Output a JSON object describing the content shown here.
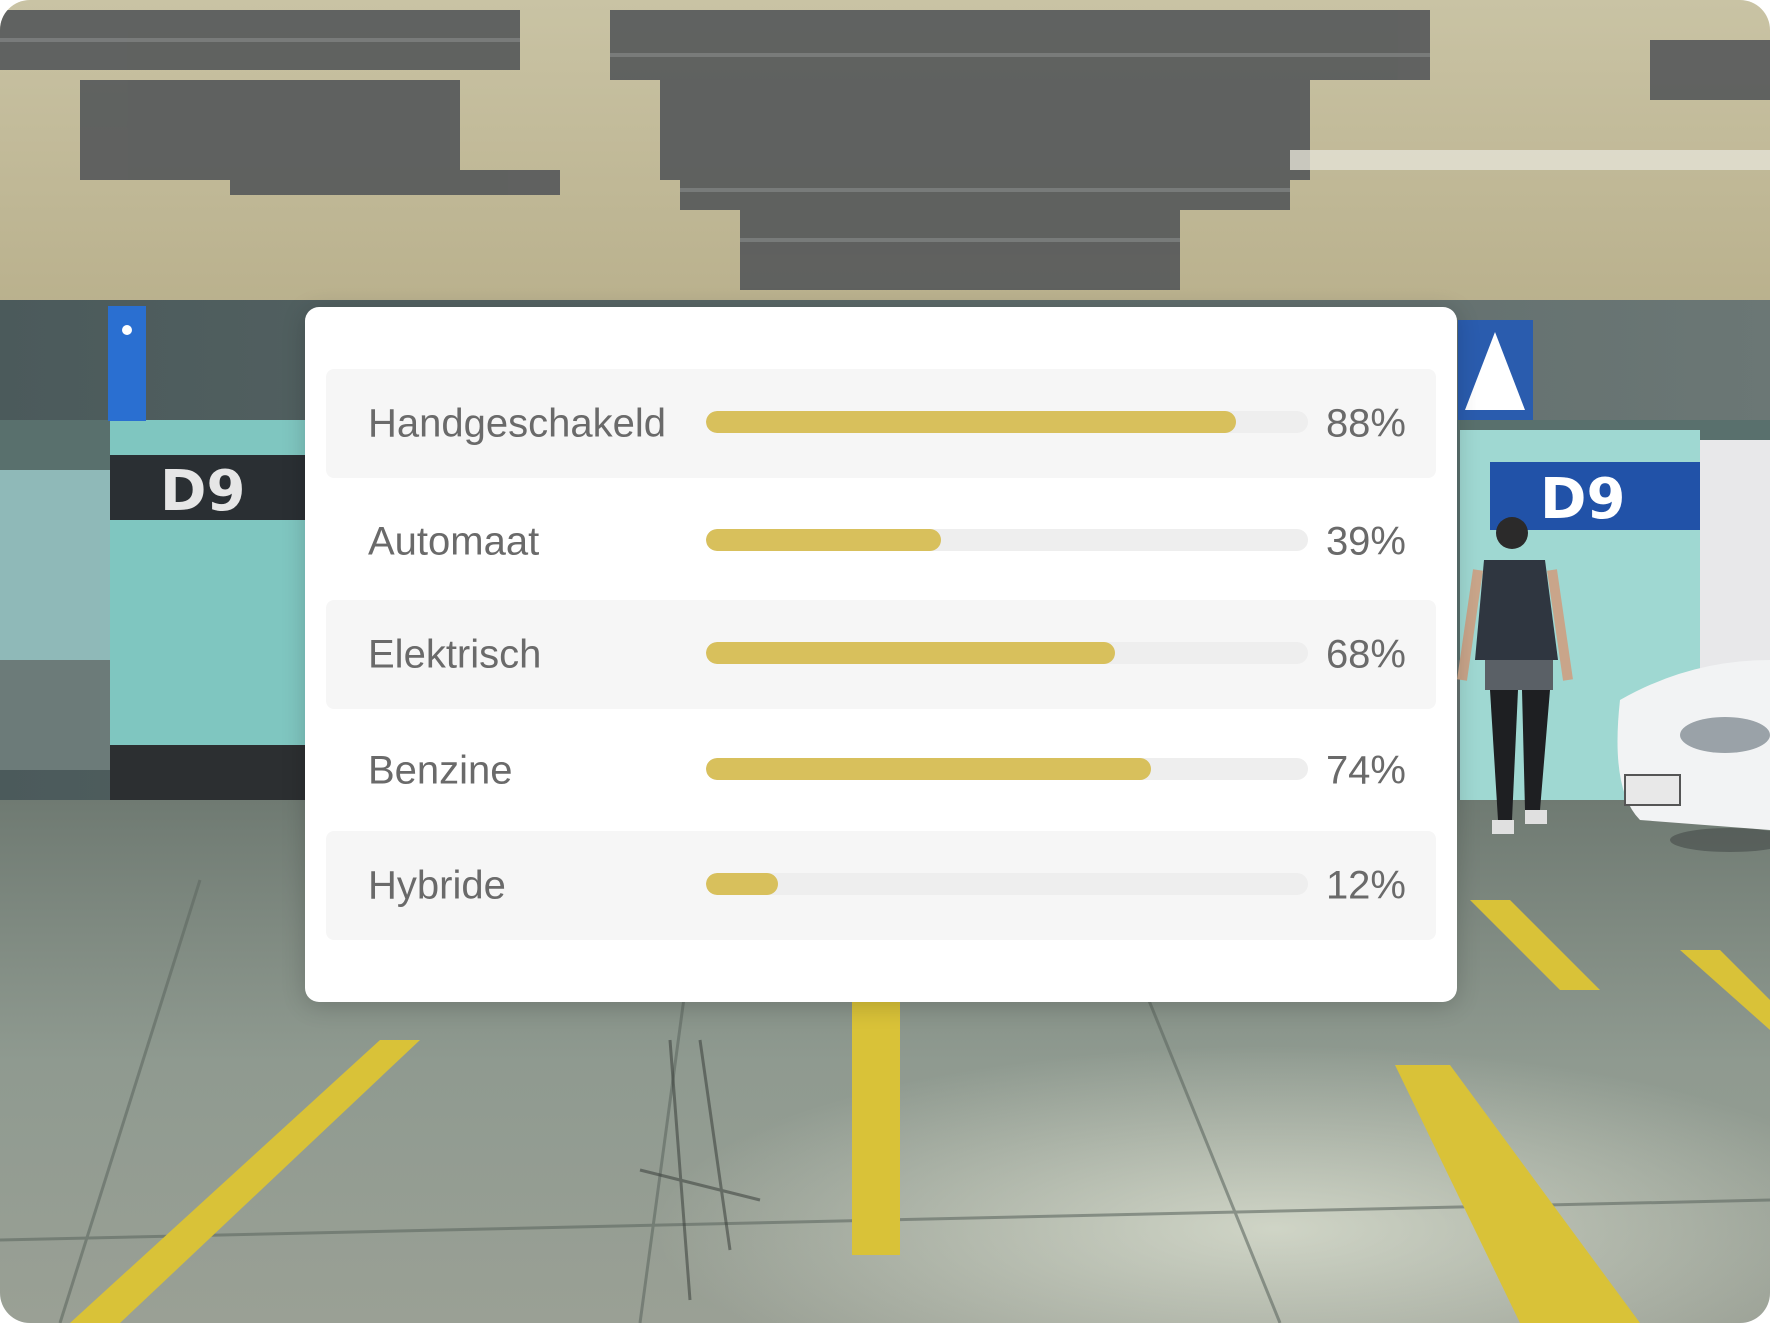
{
  "colors": {
    "bar_fill": "#d8c05c",
    "bar_track": "#eeeeee",
    "card_background": "#ffffff",
    "row_shade": "#f6f6f6",
    "text": "#6a6a6a"
  },
  "background": {
    "scene": "underground parking garage",
    "signs": [
      "D9",
      "D9"
    ]
  },
  "chart_data": {
    "type": "bar",
    "orientation": "horizontal",
    "categories": [
      "Handgeschakeld",
      "Automaat",
      "Elektrisch",
      "Benzine",
      "Hybride"
    ],
    "values": [
      88,
      39,
      68,
      74,
      12
    ],
    "value_labels": [
      "88%",
      "39%",
      "68%",
      "74%",
      "12%"
    ],
    "xlim": [
      0,
      100
    ],
    "grid": false,
    "legend": "none"
  }
}
